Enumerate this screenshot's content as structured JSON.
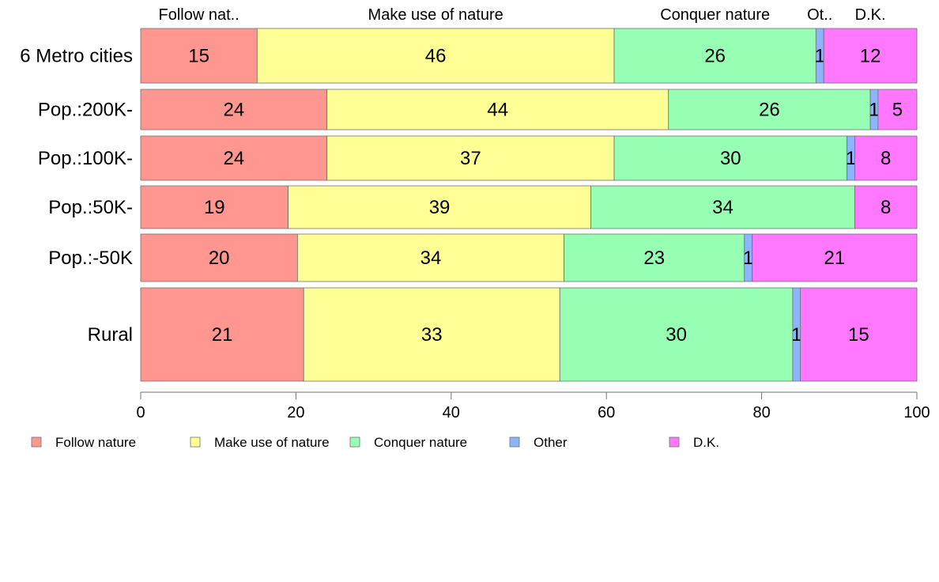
{
  "chart_data": {
    "type": "bar",
    "orientation": "horizontal",
    "stacked": true,
    "title": "",
    "xlabel": "",
    "ylabel": "",
    "xlim": [
      0,
      100
    ],
    "xticks": [
      "0",
      "20",
      "40",
      "60",
      "80",
      "100"
    ],
    "grid": false,
    "legend_position": "bottom",
    "categories": [
      "6 Metro cities",
      "Pop.:200K-",
      "Pop.:100K-",
      "Pop.:50K-",
      "Pop.:-50K",
      "Rural"
    ],
    "column_headers": [
      "Follow nat..",
      "Make use of nature",
      "Conquer nature",
      "Ot..",
      "D.K."
    ],
    "series": [
      {
        "name": "Follow nature",
        "color": "#ff9690",
        "values": [
          15,
          24,
          24,
          19,
          20,
          21
        ]
      },
      {
        "name": "Make use of nature",
        "color": "#ffff96",
        "values": [
          46,
          44,
          37,
          39,
          34,
          33
        ]
      },
      {
        "name": "Conquer nature",
        "color": "#96ffb4",
        "values": [
          26,
          26,
          30,
          34,
          23,
          30
        ]
      },
      {
        "name": "Other",
        "color": "#8cb4ff",
        "values": [
          1,
          1,
          1,
          0,
          1,
          1
        ]
      },
      {
        "name": "D.K.",
        "color": "#ff78ff",
        "values": [
          12,
          5,
          8,
          8,
          21,
          15
        ]
      }
    ]
  }
}
